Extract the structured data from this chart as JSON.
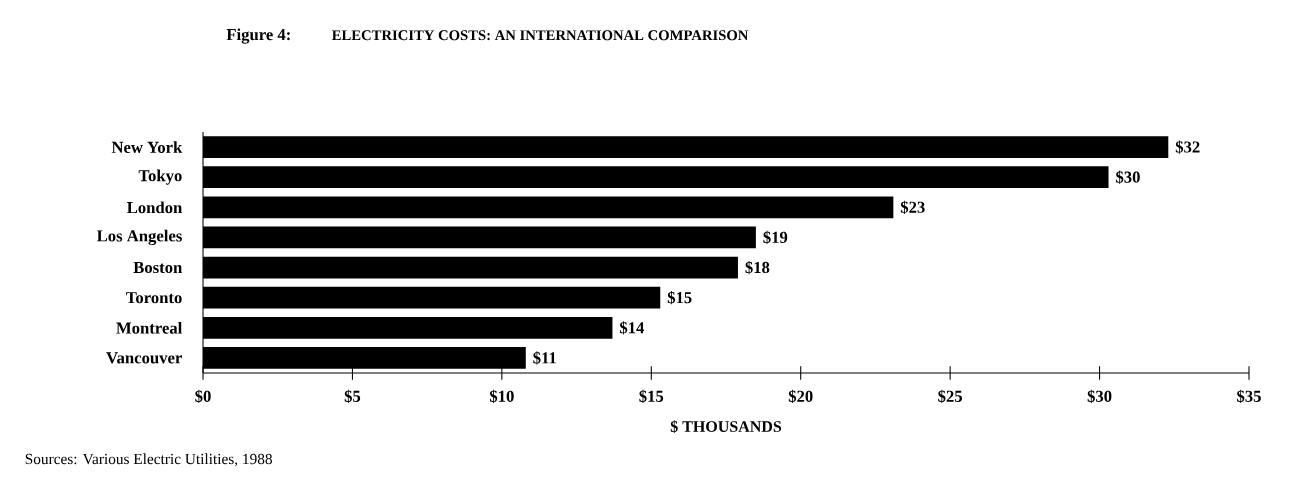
{
  "chart_data": {
    "type": "bar",
    "orientation": "horizontal",
    "title": "Figure 4:",
    "subtitle": "ELECTRICITY COSTS: AN INTERNATIONAL COMPARISON",
    "categories": [
      "New York",
      "Tokyo",
      "London",
      "Los Angeles",
      "Boston",
      "Toronto",
      "Montreal",
      "Vancouver"
    ],
    "values": [
      32.3,
      30.3,
      23.1,
      18.5,
      17.9,
      15.3,
      13.7,
      10.8
    ],
    "value_labels": [
      "$32",
      "$30",
      "$23",
      "$19",
      "$18",
      "$15",
      "$14",
      "$11"
    ],
    "color": "#000000",
    "xlim": [
      0,
      35
    ],
    "xticks": [
      {
        "value": 0,
        "label": "$0"
      },
      {
        "value": 5,
        "label": "$5"
      },
      {
        "value": 10,
        "label": "$10"
      },
      {
        "value": 15,
        "label": "$15"
      },
      {
        "value": 20,
        "label": "$20"
      },
      {
        "value": 25,
        "label": "$25"
      },
      {
        "value": 30,
        "label": "$30"
      },
      {
        "value": 35,
        "label": "$35"
      }
    ],
    "xlabel": "$ THOUSANDS",
    "annotations": [
      "Sources: Various Electric Utilities, 1988"
    ],
    "grid": false
  }
}
